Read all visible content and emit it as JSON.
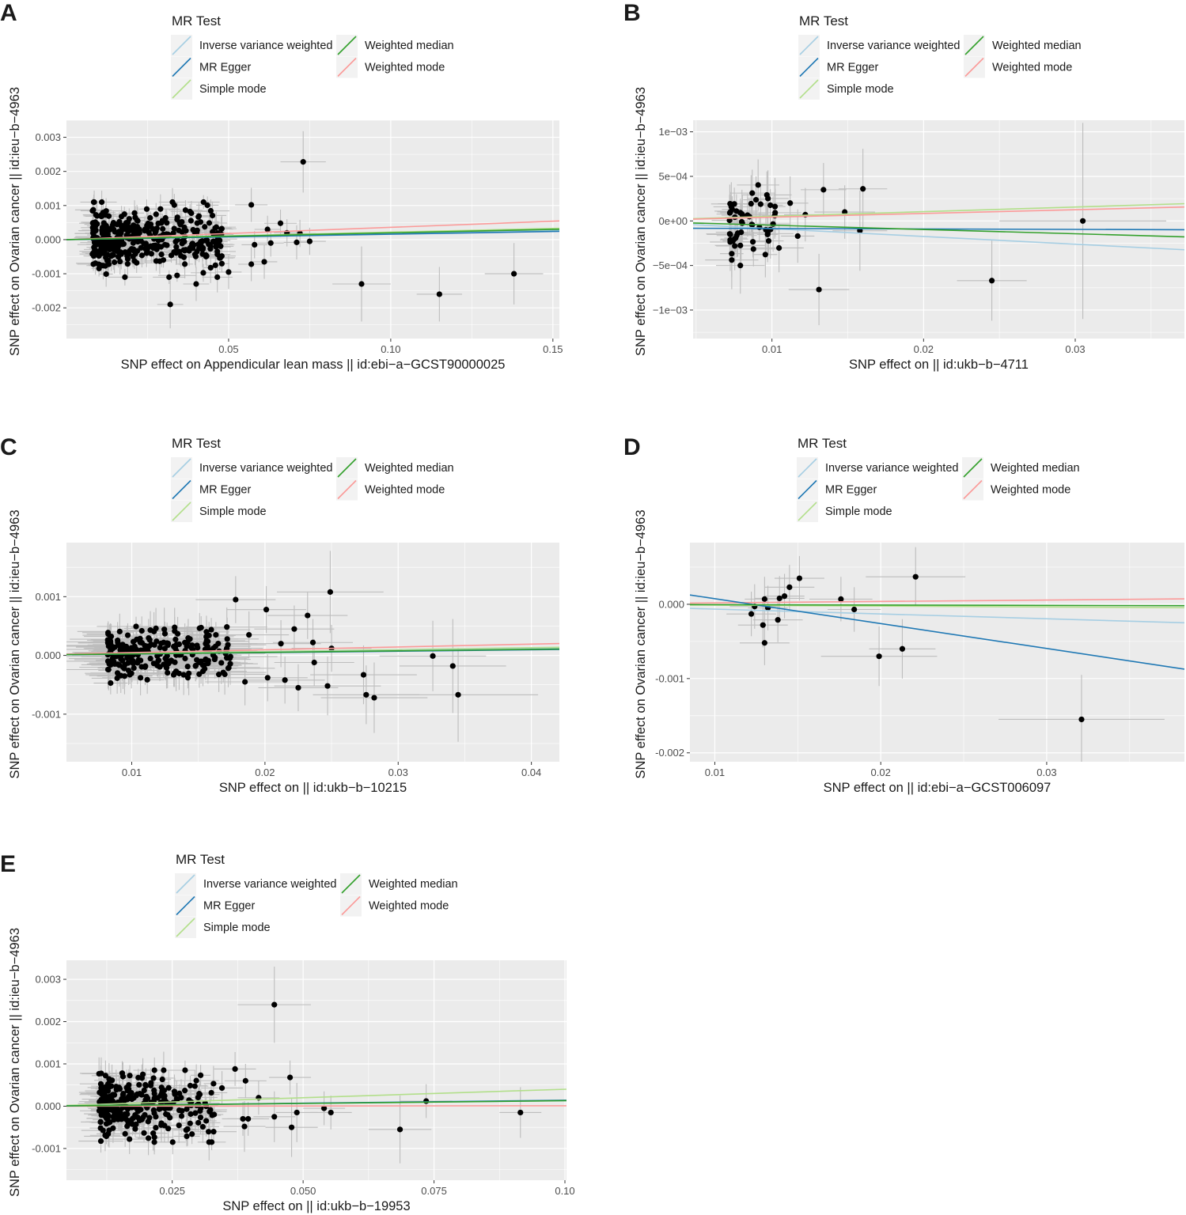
{
  "figure": {
    "legend_title": "MR Test",
    "methods": [
      {
        "name": "Inverse variance weighted",
        "color": "#a6cee3"
      },
      {
        "name": "MR Egger",
        "color": "#1f78b4"
      },
      {
        "name": "Simple mode",
        "color": "#b2df8a"
      },
      {
        "name": "Weighted median",
        "color": "#33a02c"
      },
      {
        "name": "Weighted mode",
        "color": "#fb9a99"
      }
    ],
    "point_color": "#000000",
    "error_bar_color": "#bdbdbd",
    "panel_background": "#ebebeb",
    "grid_color": "#ffffff"
  },
  "chart_data": [
    {
      "type": "scatter",
      "panel": "A",
      "xlabel": "SNP effect on Appendicular lean mass || id:ebi−a−GCST90000025",
      "ylabel": "SNP effect on Ovarian cancer || id:ieu−b−4963",
      "xlim": [
        0.0,
        0.152
      ],
      "ylim": [
        -0.0029,
        0.0035
      ],
      "xticks": [
        0.05,
        0.1,
        0.15
      ],
      "xtick_labels": [
        "0.05",
        "0.10",
        "0.15"
      ],
      "yticks": [
        -0.002,
        -0.001,
        0.0,
        0.001,
        0.002,
        0.003
      ],
      "ytick_labels": [
        "-0.002",
        "-0.001",
        "0.000",
        "0.001",
        "0.002",
        "0.003"
      ],
      "lines": [
        {
          "method": "Inverse variance weighted",
          "slope": 0.0018
        },
        {
          "method": "MR Egger",
          "slope": 0.0016
        },
        {
          "method": "Simple mode",
          "slope": 0.0022
        },
        {
          "method": "Weighted median",
          "slope": 0.002
        },
        {
          "method": "Weighted mode",
          "slope": 0.0036
        }
      ],
      "cluster": {
        "count": 380,
        "x_range": [
          0.008,
          0.048
        ],
        "y_center": 0.0,
        "y_spread": 0.0011,
        "x_se": 0.004,
        "y_se": 0.0003,
        "seed": 11
      },
      "points": [
        {
          "x": 0.073,
          "y": 0.00228,
          "xse": 0.007,
          "yse": 0.0009
        },
        {
          "x": 0.057,
          "y": 0.00102,
          "xse": 0.005,
          "yse": 0.0005
        },
        {
          "x": 0.066,
          "y": 0.00048,
          "xse": 0.005,
          "yse": 0.0004
        },
        {
          "x": 0.062,
          "y": 0.0003,
          "xse": 0.004,
          "yse": 0.0004
        },
        {
          "x": 0.068,
          "y": 0.0002,
          "xse": 0.004,
          "yse": 0.0004
        },
        {
          "x": 0.072,
          "y": 0.00018,
          "xse": 0.005,
          "yse": 0.0004
        },
        {
          "x": 0.058,
          "y": -0.00015,
          "xse": 0.004,
          "yse": 0.0004
        },
        {
          "x": 0.063,
          "y": -0.0001,
          "xse": 0.004,
          "yse": 0.0004
        },
        {
          "x": 0.075,
          "y": -5e-05,
          "xse": 0.005,
          "yse": 0.0004
        },
        {
          "x": 0.071,
          "y": -8e-05,
          "xse": 0.004,
          "yse": 0.0005
        },
        {
          "x": 0.061,
          "y": -0.00065,
          "xse": 0.004,
          "yse": 0.0005
        },
        {
          "x": 0.057,
          "y": -0.00072,
          "xse": 0.004,
          "yse": 0.0005
        },
        {
          "x": 0.05,
          "y": -0.00095,
          "xse": 0.004,
          "yse": 0.0005
        },
        {
          "x": 0.04,
          "y": -0.0013,
          "xse": 0.004,
          "yse": 0.0005
        },
        {
          "x": 0.032,
          "y": -0.0019,
          "xse": 0.004,
          "yse": 0.0007
        },
        {
          "x": 0.091,
          "y": -0.0013,
          "xse": 0.009,
          "yse": 0.0011
        },
        {
          "x": 0.115,
          "y": -0.0016,
          "xse": 0.007,
          "yse": 0.0008
        },
        {
          "x": 0.138,
          "y": -0.001,
          "xse": 0.009,
          "yse": 0.0009
        }
      ]
    },
    {
      "type": "scatter",
      "panel": "B",
      "xlabel": "SNP effect on  || id:ukb−b−4711",
      "ylabel": "SNP effect on Ovarian cancer || id:ieu−b−4963",
      "xlim": [
        0.0048,
        0.0372
      ],
      "ylim": [
        -0.00132,
        0.00113
      ],
      "xticks": [
        0.01,
        0.02,
        0.03
      ],
      "xtick_labels": [
        "0.01",
        "0.02",
        "0.03"
      ],
      "yticks": [
        -0.001,
        -0.0005,
        0.0,
        0.0005,
        0.001
      ],
      "ytick_labels": [
        "−1e−03",
        "−5e−04",
        "0e+00",
        "5e−04",
        "1e−03"
      ],
      "lines": [
        {
          "method": "Inverse variance weighted",
          "slope": -0.0087,
          "intercept": 0.0
        },
        {
          "method": "MR Egger",
          "slope": -0.0005,
          "intercept": -8e-05
        },
        {
          "method": "Simple mode",
          "slope": 0.0052,
          "intercept": 0.0
        },
        {
          "method": "Weighted median",
          "slope": -0.0048,
          "intercept": 0.0
        },
        {
          "method": "Weighted mode",
          "slope": 0.0042,
          "intercept": 0.0
        }
      ],
      "cluster": {
        "count": 55,
        "x_range": [
          0.0072,
          0.0105
        ],
        "y_center": -2e-05,
        "y_spread": 0.00048,
        "x_se": 0.0012,
        "y_se": 0.00022,
        "seed": 23
      },
      "points": [
        {
          "x": 0.0112,
          "y": 0.0002,
          "xse": 0.0012,
          "yse": 0.0003
        },
        {
          "x": 0.0122,
          "y": 7e-05,
          "xse": 0.0014,
          "yse": 0.0003
        },
        {
          "x": 0.0134,
          "y": 0.00035,
          "xse": 0.0015,
          "yse": 0.0003
        },
        {
          "x": 0.0148,
          "y": 0.0001,
          "xse": 0.002,
          "yse": 0.0003
        },
        {
          "x": 0.016,
          "y": 0.00036,
          "xse": 0.0016,
          "yse": 0.00045
        },
        {
          "x": 0.0158,
          "y": -0.00011,
          "xse": 0.0018,
          "yse": 0.00045
        },
        {
          "x": 0.0117,
          "y": -0.00017,
          "xse": 0.0011,
          "yse": 0.0003
        },
        {
          "x": 0.0131,
          "y": -0.00077,
          "xse": 0.002,
          "yse": 0.0004
        },
        {
          "x": 0.0245,
          "y": -0.00067,
          "xse": 0.0023,
          "yse": 0.00045
        },
        {
          "x": 0.0305,
          "y": 0.0,
          "xse": 0.0055,
          "yse": 0.0011
        }
      ]
    },
    {
      "type": "scatter",
      "panel": "C",
      "xlabel": "SNP effect on  || id:ukb−b−10215",
      "ylabel": "SNP effect on Ovarian cancer || id:ieu−b−4963",
      "xlim": [
        0.0051,
        0.0421
      ],
      "ylim": [
        -0.00181,
        0.00192
      ],
      "xticks": [
        0.01,
        0.02,
        0.03,
        0.04
      ],
      "xtick_labels": [
        "0.01",
        "0.02",
        "0.03",
        "0.04"
      ],
      "yticks": [
        -0.001,
        0.0,
        0.001
      ],
      "ytick_labels": [
        "-0.001",
        "0.000",
        "0.001"
      ],
      "lines": [
        {
          "method": "Inverse variance weighted",
          "slope": 0.0028
        },
        {
          "method": "MR Egger",
          "slope": 0.0024
        },
        {
          "method": "Simple mode",
          "slope": 0.0033
        },
        {
          "method": "Weighted median",
          "slope": 0.0026
        },
        {
          "method": "Weighted mode",
          "slope": 0.0048
        }
      ],
      "cluster": {
        "count": 230,
        "x_range": [
          0.0082,
          0.0175
        ],
        "y_center": 0.0,
        "y_spread": 0.00055,
        "x_se": 0.0025,
        "y_se": 0.00025,
        "seed": 37
      },
      "points": [
        {
          "x": 0.0178,
          "y": 0.00095,
          "xse": 0.003,
          "yse": 0.0004
        },
        {
          "x": 0.0201,
          "y": 0.00078,
          "xse": 0.003,
          "yse": 0.0004
        },
        {
          "x": 0.0222,
          "y": 0.00045,
          "xse": 0.003,
          "yse": 0.0004
        },
        {
          "x": 0.0232,
          "y": 0.00068,
          "xse": 0.003,
          "yse": 0.0004
        },
        {
          "x": 0.0249,
          "y": 0.00108,
          "xse": 0.004,
          "yse": 0.0007
        },
        {
          "x": 0.0236,
          "y": 0.00022,
          "xse": 0.003,
          "yse": 0.0004
        },
        {
          "x": 0.0212,
          "y": 0.0002,
          "xse": 0.003,
          "yse": 0.0004
        },
        {
          "x": 0.0188,
          "y": 0.00035,
          "xse": 0.003,
          "yse": 0.0004
        },
        {
          "x": 0.025,
          "y": 0.00012,
          "xse": 0.003,
          "yse": 0.0004
        },
        {
          "x": 0.0215,
          "y": -0.00042,
          "xse": 0.003,
          "yse": 0.0004
        },
        {
          "x": 0.0202,
          "y": -0.00038,
          "xse": 0.003,
          "yse": 0.0004
        },
        {
          "x": 0.0225,
          "y": -0.00055,
          "xse": 0.003,
          "yse": 0.0004
        },
        {
          "x": 0.0185,
          "y": -0.00045,
          "xse": 0.003,
          "yse": 0.0004
        },
        {
          "x": 0.0247,
          "y": -0.00052,
          "xse": 0.004,
          "yse": 0.0005
        },
        {
          "x": 0.0237,
          "y": -0.00012,
          "xse": 0.003,
          "yse": 0.0004
        },
        {
          "x": 0.0274,
          "y": -0.00033,
          "xse": 0.004,
          "yse": 0.0005
        },
        {
          "x": 0.0276,
          "y": -0.00067,
          "xse": 0.004,
          "yse": 0.0005
        },
        {
          "x": 0.0282,
          "y": -0.00072,
          "xse": 0.004,
          "yse": 0.0006
        },
        {
          "x": 0.0326,
          "y": -1e-05,
          "xse": 0.004,
          "yse": 0.0006
        },
        {
          "x": 0.0341,
          "y": -0.00018,
          "xse": 0.004,
          "yse": 0.0008
        },
        {
          "x": 0.0345,
          "y": -0.00067,
          "xse": 0.006,
          "yse": 0.0008
        }
      ]
    },
    {
      "type": "scatter",
      "panel": "D",
      "xlabel": "SNP effect on  || id:ebi−a−GCST006097",
      "ylabel": "SNP effect on Ovarian cancer || id:ieu−b−4963",
      "xlim": [
        0.0085,
        0.0383
      ],
      "ylim": [
        -0.00212,
        0.00083
      ],
      "xticks": [
        0.01,
        0.02,
        0.03
      ],
      "xtick_labels": [
        "0.01",
        "0.02",
        "0.03"
      ],
      "yticks": [
        -0.002,
        -0.001,
        0.0
      ],
      "ytick_labels": [
        "-0.002",
        "-0.001",
        "0.000"
      ],
      "lines": [
        {
          "method": "Inverse variance weighted",
          "slope": -0.0065,
          "intercept": 0.0
        },
        {
          "method": "MR Egger",
          "slope": -0.0335,
          "intercept": 0.00041
        },
        {
          "method": "Simple mode",
          "slope": -0.0012,
          "intercept": 0.0
        },
        {
          "method": "Weighted median",
          "slope": -0.0005,
          "intercept": 0.0
        },
        {
          "method": "Weighted mode",
          "slope": 0.0019,
          "intercept": 0.0
        }
      ],
      "cluster": {
        "count": 0,
        "x_range": [
          0.012,
          0.015
        ],
        "y_center": 0.0,
        "y_spread": 0.0002,
        "x_se": 0.001,
        "y_se": 0.0002,
        "seed": 5
      },
      "points": [
        {
          "x": 0.0124,
          "y": -3e-05,
          "xse": 0.0015,
          "yse": 0.0003
        },
        {
          "x": 0.0122,
          "y": -0.00013,
          "xse": 0.0015,
          "yse": 0.0003
        },
        {
          "x": 0.013,
          "y": 7e-05,
          "xse": 0.0012,
          "yse": 0.0003
        },
        {
          "x": 0.0132,
          "y": -5e-05,
          "xse": 0.0012,
          "yse": 0.0003
        },
        {
          "x": 0.0129,
          "y": -0.00028,
          "xse": 0.0015,
          "yse": 0.0003
        },
        {
          "x": 0.013,
          "y": -0.00052,
          "xse": 0.0015,
          "yse": 0.0003
        },
        {
          "x": 0.0138,
          "y": -0.00021,
          "xse": 0.0015,
          "yse": 0.0003
        },
        {
          "x": 0.0139,
          "y": 8e-05,
          "xse": 0.0015,
          "yse": 0.0003
        },
        {
          "x": 0.0142,
          "y": 0.00011,
          "xse": 0.0012,
          "yse": 0.0003
        },
        {
          "x": 0.0145,
          "y": 0.00023,
          "xse": 0.0015,
          "yse": 0.0003
        },
        {
          "x": 0.0151,
          "y": 0.00035,
          "xse": 0.0015,
          "yse": 0.0003
        },
        {
          "x": 0.0176,
          "y": 7e-05,
          "xse": 0.0019,
          "yse": 0.0003
        },
        {
          "x": 0.0184,
          "y": -7e-05,
          "xse": 0.0016,
          "yse": 0.0003
        },
        {
          "x": 0.0199,
          "y": -0.0007,
          "xse": 0.0035,
          "yse": 0.0004
        },
        {
          "x": 0.0213,
          "y": -0.0006,
          "xse": 0.002,
          "yse": 0.0004
        },
        {
          "x": 0.0221,
          "y": 0.00037,
          "xse": 0.003,
          "yse": 0.0004
        },
        {
          "x": 0.0321,
          "y": -0.00155,
          "xse": 0.005,
          "yse": 0.0006
        }
      ]
    },
    {
      "type": "scatter",
      "panel": "E",
      "xlabel": "SNP effect on  || id:ukb−b−19953",
      "ylabel": "SNP effect on Ovarian cancer || id:ieu−b−4963",
      "xlim": [
        0.0048,
        0.1003
      ],
      "ylim": [
        -0.00175,
        0.00345
      ],
      "xticks": [
        0.025,
        0.05,
        0.075,
        0.1
      ],
      "xtick_labels": [
        "0.025",
        "0.050",
        "0.075",
        "0.10"
      ],
      "yticks": [
        -0.001,
        0.0,
        0.001,
        0.002,
        0.003
      ],
      "ytick_labels": [
        "-0.001",
        "0.000",
        "0.001",
        "0.002",
        "0.003"
      ],
      "lines": [
        {
          "method": "Inverse variance weighted",
          "slope": 0.0013
        },
        {
          "method": "MR Egger",
          "slope": 0.0014
        },
        {
          "method": "Simple mode",
          "slope": 0.004
        },
        {
          "method": "Weighted median",
          "slope": 0.0013
        },
        {
          "method": "Weighted mode",
          "slope": 0.0001
        }
      ],
      "cluster": {
        "count": 300,
        "x_range": [
          0.011,
          0.033
        ],
        "y_center": 0.0,
        "y_spread": 0.00085,
        "x_se": 0.003,
        "y_se": 0.0003,
        "seed": 53
      },
      "points": [
        {
          "x": 0.0445,
          "y": 0.0024,
          "xse": 0.007,
          "yse": 0.0009
        },
        {
          "x": 0.037,
          "y": 0.00088,
          "xse": 0.004,
          "yse": 0.0004
        },
        {
          "x": 0.0475,
          "y": 0.00068,
          "xse": 0.004,
          "yse": 0.0004
        },
        {
          "x": 0.039,
          "y": 0.0006,
          "xse": 0.004,
          "yse": 0.0004
        },
        {
          "x": 0.0345,
          "y": 0.00043,
          "xse": 0.004,
          "yse": 0.0004
        },
        {
          "x": 0.0415,
          "y": 0.0002,
          "xse": 0.004,
          "yse": 0.0004
        },
        {
          "x": 0.0385,
          "y": -0.0003,
          "xse": 0.004,
          "yse": 0.0004
        },
        {
          "x": 0.0395,
          "y": -0.0003,
          "xse": 0.004,
          "yse": 0.0004
        },
        {
          "x": 0.0388,
          "y": -0.00048,
          "xse": 0.004,
          "yse": 0.0006
        },
        {
          "x": 0.0445,
          "y": -0.00025,
          "xse": 0.004,
          "yse": 0.0006
        },
        {
          "x": 0.0488,
          "y": -0.00015,
          "xse": 0.004,
          "yse": 0.0007
        },
        {
          "x": 0.0478,
          "y": -0.0005,
          "xse": 0.005,
          "yse": 0.0007
        },
        {
          "x": 0.054,
          "y": -5e-05,
          "xse": 0.004,
          "yse": 0.0004
        },
        {
          "x": 0.0553,
          "y": -0.00015,
          "xse": 0.004,
          "yse": 0.0004
        },
        {
          "x": 0.0685,
          "y": -0.00055,
          "xse": 0.006,
          "yse": 0.0008
        },
        {
          "x": 0.0735,
          "y": 0.00012,
          "xse": 0.005,
          "yse": 0.0004
        },
        {
          "x": 0.0915,
          "y": -0.00015,
          "xse": 0.004,
          "yse": 0.0006
        }
      ]
    }
  ]
}
